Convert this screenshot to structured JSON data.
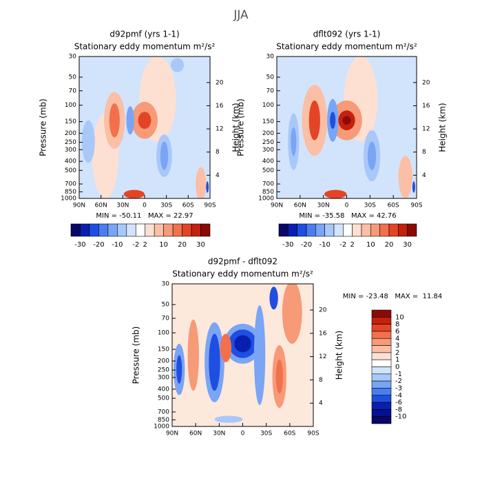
{
  "title": "JJA",
  "chart_data": [
    {
      "type": "contour",
      "title": "d92pmf (yrs 1-1)",
      "subtitle": "Stationary eddy momentum  m²/s²",
      "ylabel": "Pressure (mb)",
      "y2label": "Height (km)",
      "log_scale": true,
      "xlim": [
        90,
        -90
      ],
      "xticks": [
        {
          "value": 90,
          "label": "90N"
        },
        {
          "value": 60,
          "label": "60N"
        },
        {
          "value": 30,
          "label": "30N"
        },
        0,
        {
          "value": -30,
          "label": "30S"
        },
        {
          "value": -60,
          "label": "60S"
        },
        {
          "value": -90,
          "label": "90S"
        }
      ],
      "ylim": [
        30,
        1000
      ],
      "yticks": [
        30,
        50,
        70,
        100,
        150,
        200,
        250,
        300,
        400,
        500,
        700,
        850,
        1000
      ],
      "y2lim": [
        0,
        24.5
      ],
      "y2ticks": [
        4,
        8,
        12,
        16,
        20
      ],
      "stats": "MIN = -50.11   MAX = 22.97",
      "colorbar_labels": [
        -30,
        -20,
        -10,
        -2,
        2,
        10,
        20,
        30
      ],
      "colorbar_colors": [
        "#08086b",
        "#0a1fb0",
        "#1f4fe0",
        "#4a7ef0",
        "#7aa5f5",
        "#a8c8fa",
        "#d2e4fc",
        "#ffffff",
        "#fde0d2",
        "#fbbfa5",
        "#f79a78",
        "#f2704c",
        "#e44426",
        "#c4200e",
        "#8b0a05"
      ]
    },
    {
      "type": "contour",
      "title": "dflt092 (yrs 1-1)",
      "subtitle": "Stationary eddy momentum  m²/s²",
      "ylabel": "Pressure (mb)",
      "y2label": "Height (km)",
      "log_scale": true,
      "xlim": [
        90,
        -90
      ],
      "xticks": [
        {
          "value": 90,
          "label": "90N"
        },
        {
          "value": 60,
          "label": "60N"
        },
        {
          "value": 30,
          "label": "30N"
        },
        0,
        {
          "value": -30,
          "label": "30S"
        },
        {
          "value": -60,
          "label": "60S"
        },
        {
          "value": -90,
          "label": "90S"
        }
      ],
      "ylim": [
        30,
        1000
      ],
      "yticks": [
        30,
        50,
        70,
        100,
        150,
        200,
        250,
        300,
        400,
        500,
        700,
        850,
        1000
      ],
      "y2lim": [
        0,
        24.5
      ],
      "y2ticks": [
        4,
        8,
        12,
        16,
        20
      ],
      "stats": "MIN = -35.58   MAX = 42.76",
      "colorbar_labels": [
        -30,
        -20,
        -10,
        -2,
        2,
        10,
        20,
        30
      ],
      "colorbar_colors": [
        "#08086b",
        "#0a1fb0",
        "#1f4fe0",
        "#4a7ef0",
        "#7aa5f5",
        "#a8c8fa",
        "#d2e4fc",
        "#ffffff",
        "#fde0d2",
        "#fbbfa5",
        "#f79a78",
        "#f2704c",
        "#e44426",
        "#c4200e",
        "#8b0a05"
      ]
    },
    {
      "type": "contour",
      "title": "d92pmf - dflt092",
      "subtitle": "Stationary eddy momentum  m²/s²",
      "ylabel": "Pressure (mb)",
      "y2label": "Height (km)",
      "log_scale": true,
      "xlim": [
        90,
        -90
      ],
      "xticks": [
        {
          "value": 90,
          "label": "90N"
        },
        {
          "value": 60,
          "label": "60N"
        },
        {
          "value": 30,
          "label": "30N"
        },
        0,
        {
          "value": -30,
          "label": "30S"
        },
        {
          "value": -60,
          "label": "60S"
        },
        {
          "value": -90,
          "label": "90S"
        }
      ],
      "ylim": [
        30,
        1000
      ],
      "yticks": [
        30,
        50,
        70,
        100,
        150,
        200,
        250,
        300,
        400,
        500,
        700,
        850,
        1000
      ],
      "y2lim": [
        0,
        24.5
      ],
      "y2ticks": [
        4,
        8,
        12,
        16,
        20
      ],
      "stats": "MIN = -23.48   MAX =  11.84",
      "colorbar_labels": [
        10,
        8,
        6,
        4,
        3,
        2,
        1,
        0,
        -1,
        -2,
        -3,
        -4,
        -6,
        -8,
        -10
      ],
      "colorbar_colors": [
        "#8b0a05",
        "#c4200e",
        "#e44426",
        "#f2704c",
        "#f79a78",
        "#fbbfa5",
        "#fde0d2",
        "#ffffff",
        "#d2e4fc",
        "#a8c8fa",
        "#7aa5f5",
        "#4a7ef0",
        "#1f4fe0",
        "#0a1fb0",
        "#061090",
        "#08086b"
      ]
    }
  ]
}
